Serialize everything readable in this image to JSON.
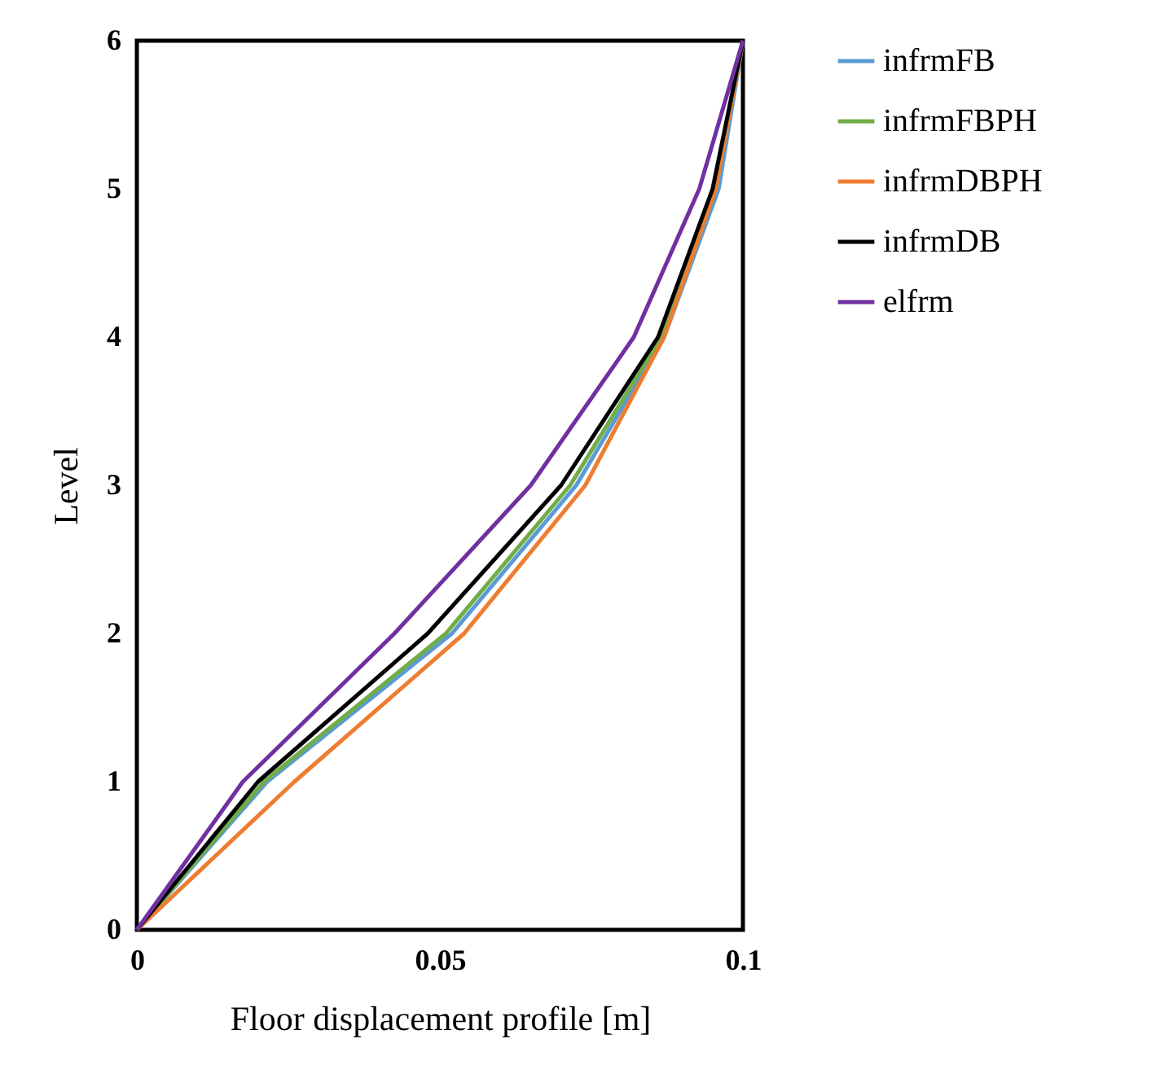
{
  "chart_data": {
    "type": "line",
    "xlabel": "Floor displacement profile [m]",
    "ylabel": "Level",
    "xlim": [
      0,
      0.1
    ],
    "xticks": [
      0,
      0.05,
      {
        "value": 0.1,
        "label": "0.1"
      }
    ],
    "ylim": [
      0,
      6
    ],
    "yticks": [
      0,
      1,
      2,
      3,
      4,
      5,
      6
    ],
    "grid": false,
    "legend": "right",
    "marker": "none",
    "line_style": "solid",
    "series": [
      {
        "name": "infrmFB",
        "color": "#5b9bd5",
        "x": [
          0,
          0.0215,
          0.052,
          0.0725,
          0.087,
          0.096,
          0.1
        ],
        "values": [
          0,
          1,
          2,
          3,
          4,
          5,
          6
        ]
      },
      {
        "name": "infrmFBPH",
        "color": "#70ad47",
        "x": [
          0,
          0.021,
          0.051,
          0.0715,
          0.0865,
          0.0955,
          0.1
        ],
        "values": [
          0,
          1,
          2,
          3,
          4,
          5,
          6
        ]
      },
      {
        "name": "infrmDBPH",
        "color": "#ed7d31",
        "x": [
          0,
          0.026,
          0.054,
          0.074,
          0.087,
          0.0955,
          0.1
        ],
        "values": [
          0,
          1,
          2,
          3,
          4,
          5,
          6
        ]
      },
      {
        "name": "infrmDB",
        "color": "#000000",
        "x": [
          0,
          0.02,
          0.048,
          0.07,
          0.086,
          0.095,
          0.1
        ],
        "values": [
          0,
          1,
          2,
          3,
          4,
          5,
          6
        ]
      },
      {
        "name": "elfrm",
        "color": "#7030a0",
        "x": [
          0,
          0.0175,
          0.0425,
          0.065,
          0.082,
          0.0928,
          0.1
        ],
        "values": [
          0,
          1,
          2,
          3,
          4,
          5,
          6
        ]
      }
    ]
  }
}
